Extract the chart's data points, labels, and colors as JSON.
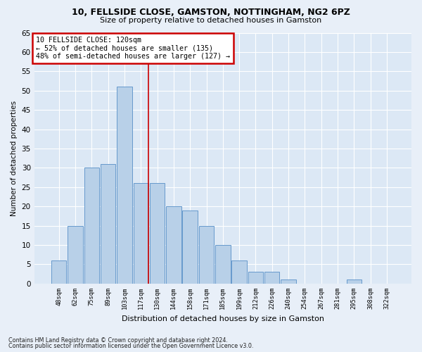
{
  "title1": "10, FELLSIDE CLOSE, GAMSTON, NOTTINGHAM, NG2 6PZ",
  "title2": "Size of property relative to detached houses in Gamston",
  "xlabel": "Distribution of detached houses by size in Gamston",
  "ylabel": "Number of detached properties",
  "bin_labels": [
    "48sqm",
    "62sqm",
    "75sqm",
    "89sqm",
    "103sqm",
    "117sqm",
    "130sqm",
    "144sqm",
    "158sqm",
    "171sqm",
    "185sqm",
    "199sqm",
    "212sqm",
    "226sqm",
    "240sqm",
    "254sqm",
    "267sqm",
    "281sqm",
    "295sqm",
    "308sqm",
    "322sqm"
  ],
  "bar_values": [
    6,
    15,
    30,
    31,
    51,
    26,
    26,
    20,
    19,
    15,
    10,
    6,
    3,
    3,
    1,
    0,
    0,
    0,
    1,
    0,
    0
  ],
  "bar_color": "#b8d0e8",
  "bar_edge_color": "#6699cc",
  "vline_x_index": 5.45,
  "vline_color": "#cc0000",
  "annotation_text": "10 FELLSIDE CLOSE: 120sqm\n← 52% of detached houses are smaller (135)\n48% of semi-detached houses are larger (127) →",
  "annotation_box_color": "#ffffff",
  "annotation_box_edge": "#cc0000",
  "ylim": [
    0,
    65
  ],
  "yticks": [
    0,
    5,
    10,
    15,
    20,
    25,
    30,
    35,
    40,
    45,
    50,
    55,
    60,
    65
  ],
  "footer1": "Contains HM Land Registry data © Crown copyright and database right 2024.",
  "footer2": "Contains public sector information licensed under the Open Government Licence v3.0.",
  "bg_color": "#e8eff8",
  "plot_bg_color": "#dce8f5",
  "title1_fontsize": 9,
  "title2_fontsize": 8
}
